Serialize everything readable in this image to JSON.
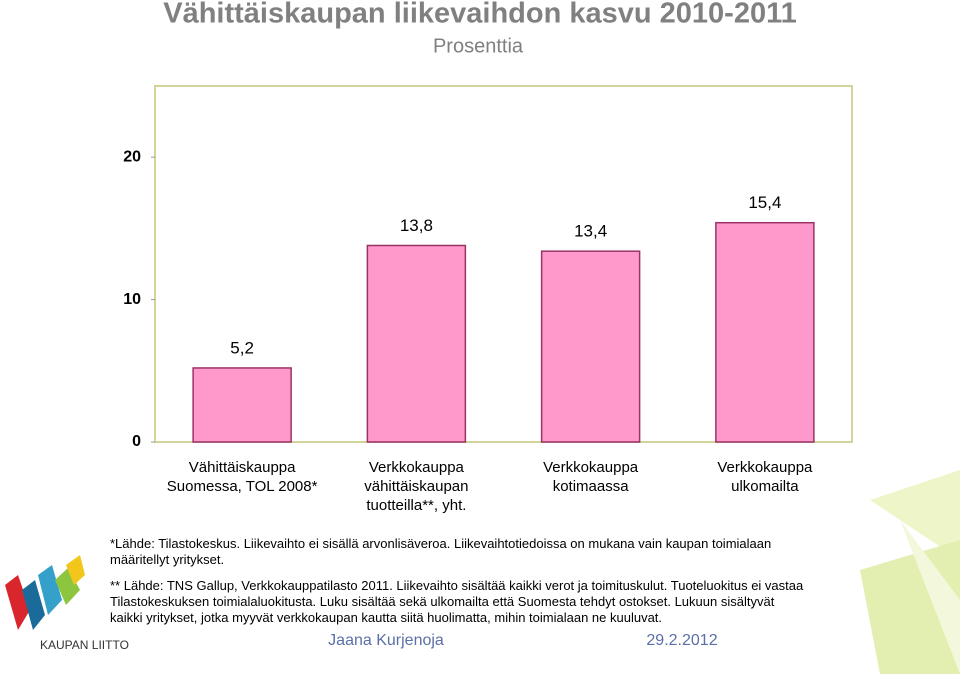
{
  "title": "Vähittäiskaupan liikevaihdon kasvu 2010-2011",
  "subtitle": "Prosenttia",
  "chart_data": {
    "type": "bar",
    "categories": [
      "Vähittäiskauppa\nSuomessa, TOL 2008*",
      "Verkkokauppa\nvähittäiskaupan\ntuotteilla**, yht.",
      "Verkkokauppa\nkotimaassa",
      "Verkkokauppa\nulkomailta"
    ],
    "values": [
      5.2,
      13.8,
      13.4,
      15.4
    ],
    "value_labels": [
      "5,2",
      "13,8",
      "13,4",
      "15,4"
    ],
    "color": "#ff99cc",
    "ylim": [
      0,
      25
    ],
    "yticks": [
      0,
      10,
      20
    ],
    "grid": false
  },
  "footnotes": [
    "*Lähde: Tilastokeskus. Liikevaihto ei sisällä arvonlisäveroa. Liikevaihtotiedoissa on mukana vain kaupan toimialaan\nmääritellyt yritykset.",
    "** Lähde: TNS Gallup, Verkkokauppatilasto 2011. Liikevaihto sisältää kaikki verot ja toimituskulut. Tuoteluokitus ei vastaa\nTilastokeskuksen toimialaluokitusta. Luku sisältää sekä ulkomailta että Suomesta tehdyt ostokset. Lukuun sisältyvät\nkaikki yritykset, jotka myyvät verkkokaupan kautta siitä huolimatta, mihin toimialaan ne kuuluvat."
  ],
  "author": "Jaana Kurjenoja",
  "date": "29.2.2012",
  "logo_text": "KAUPAN LIITTO"
}
